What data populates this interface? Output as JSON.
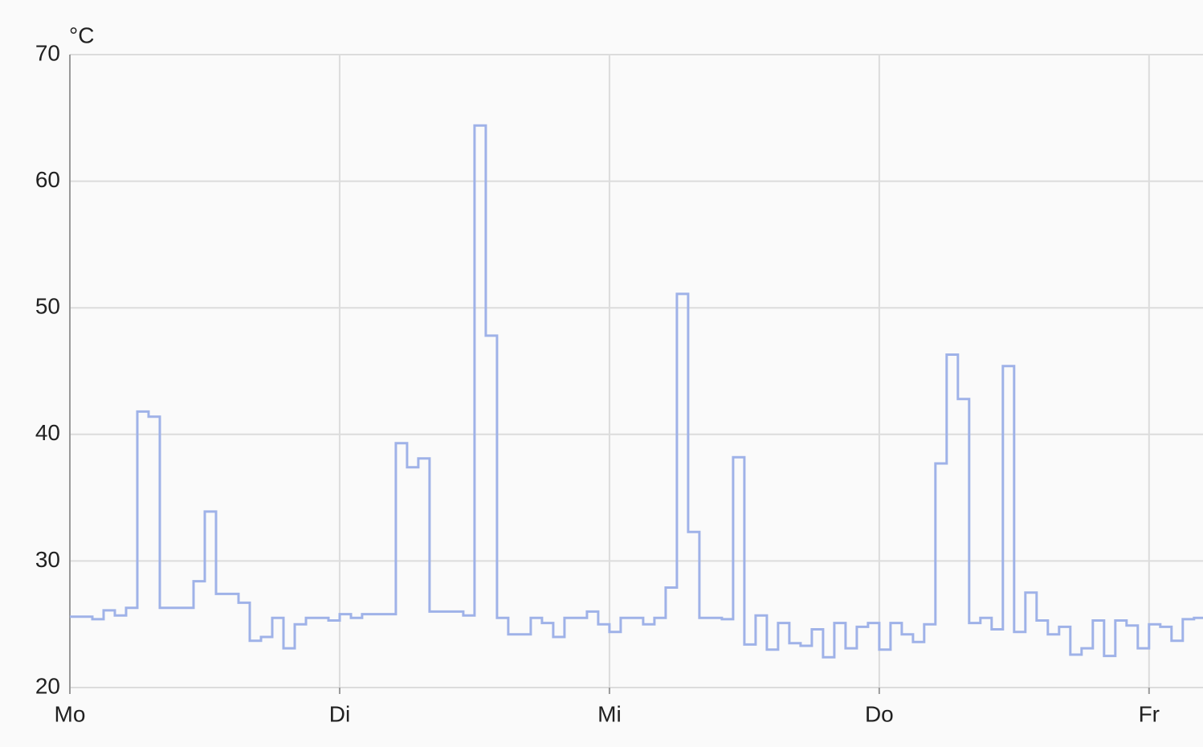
{
  "chart_data": {
    "type": "line",
    "y_label": "°C",
    "step": true,
    "grid": true,
    "x": [
      0,
      2,
      3,
      4,
      5,
      6,
      7,
      8,
      11,
      12,
      13,
      15,
      16,
      17,
      18,
      19,
      20,
      21,
      23,
      24,
      25,
      26,
      29,
      30,
      31,
      32,
      35,
      36,
      37,
      38,
      39,
      41,
      42,
      43,
      44,
      46,
      47,
      48,
      49,
      51,
      52,
      53,
      54,
      55,
      56,
      58,
      59,
      60,
      61,
      62,
      63,
      64,
      65,
      66,
      67,
      68,
      69,
      70,
      71,
      72,
      73,
      74,
      75,
      76,
      77,
      78,
      79,
      80,
      81,
      82,
      83,
      84,
      85,
      86,
      87,
      88,
      89,
      90,
      91,
      92,
      93,
      94,
      95,
      96,
      97,
      98,
      99,
      100
    ],
    "series": [
      {
        "color": "#9fb2e8",
        "values": [
          25.6,
          25.4,
          26.1,
          25.7,
          26.3,
          41.8,
          41.4,
          26.3,
          28.4,
          33.9,
          27.4,
          26.7,
          23.7,
          24.0,
          25.5,
          23.1,
          25.0,
          25.5,
          25.3,
          25.8,
          25.5,
          25.8,
          39.3,
          37.4,
          38.1,
          26.0,
          25.7,
          64.4,
          47.8,
          25.5,
          24.2,
          25.5,
          25.1,
          24.0,
          25.5,
          26.0,
          25.0,
          24.4,
          25.5,
          25.0,
          25.5,
          27.9,
          51.1,
          32.3,
          25.5,
          25.4,
          38.2,
          23.4,
          25.7,
          23.0,
          25.1,
          23.5,
          23.3,
          24.6,
          22.4,
          25.1,
          23.1,
          24.8,
          25.1,
          23.0,
          25.1,
          24.2,
          23.6,
          25.0,
          37.7,
          46.3,
          42.8,
          25.1,
          25.5,
          24.6,
          45.4,
          24.4,
          27.5,
          25.3,
          24.2,
          24.8,
          22.6,
          23.1,
          25.3,
          22.5,
          25.3,
          24.9,
          23.1,
          25.0,
          24.8,
          23.7,
          25.4,
          25.5
        ]
      }
    ],
    "xlim": [
      0,
      100.8
    ],
    "xticks": [
      {
        "value": 0,
        "label": "Mo"
      },
      {
        "value": 24,
        "label": "Di"
      },
      {
        "value": 48,
        "label": "Mi"
      },
      {
        "value": 72,
        "label": "Do"
      },
      {
        "value": 96,
        "label": "Fr"
      }
    ],
    "ylim": [
      20,
      70
    ],
    "yticks": [
      20,
      30,
      40,
      50,
      60,
      70
    ]
  }
}
